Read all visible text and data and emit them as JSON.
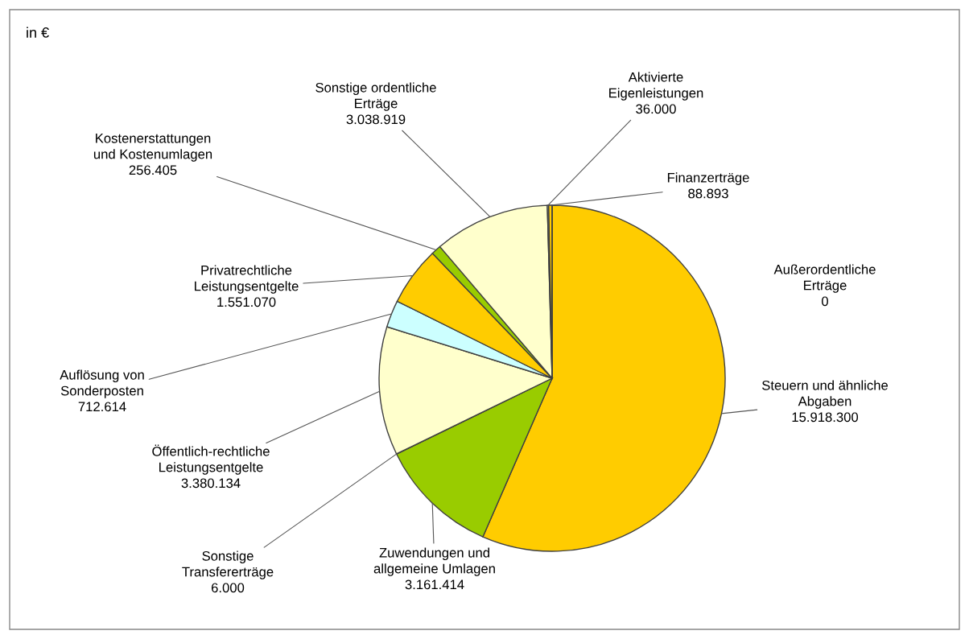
{
  "chart_data": {
    "type": "pie",
    "title": "in €",
    "categories": [
      "Steuern und ähnliche\nAbgaben",
      "Zuwendungen und\nallgemeine Umlagen",
      "Sonstige\nTransfererträge",
      "Öffentlich-rechtliche\nLeistungsentgelte",
      "Auflösung von\nSonderposten",
      "Privatrechtliche\nLeistungsentgelte",
      "Kostenerstattungen\nund Kostenumlagen",
      "Sonstige ordentliche\nErträge",
      "Aktivierte\nEigenleistungen",
      "Finanzerträge",
      "Außerordentliche\nErträge"
    ],
    "values": [
      15918300,
      3161414,
      6000,
      3380134,
      712614,
      1551070,
      256405,
      3038919,
      36000,
      88893,
      0
    ],
    "value_labels": [
      "15.918.300",
      "3.161.414",
      "6.000",
      "3.380.134",
      "712.614",
      "1.551.070",
      "256.405",
      "3.038.919",
      "36.000",
      "88.893",
      "0"
    ],
    "colors": [
      "#ffcc00",
      "#99cc00",
      "#ccffff",
      "#ffffcc",
      "#ccffff",
      "#ffcc00",
      "#99cc00",
      "#ffffcc",
      "#ccffff",
      "#ffcc00",
      "#99cc00"
    ]
  }
}
